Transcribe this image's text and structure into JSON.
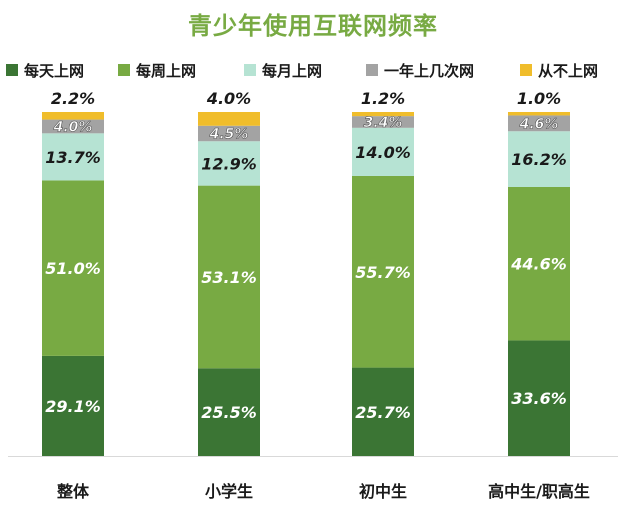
{
  "chart_data": {
    "type": "stacked-bar",
    "title": "青少年使用互联网频率",
    "categories": [
      "整体",
      "小学生",
      "初中生",
      "高中生/职高生"
    ],
    "series": [
      {
        "name": "每天上网",
        "color": "#3b7534",
        "values": [
          29.1,
          25.5,
          25.7,
          33.6
        ],
        "labels": [
          "29.1%",
          "25.5%",
          "25.7%",
          "33.6%"
        ]
      },
      {
        "name": "每周上网",
        "color": "#78aa43",
        "values": [
          51.0,
          53.1,
          55.7,
          44.6
        ],
        "labels": [
          "51.0%",
          "53.1%",
          "55.7%",
          "44.6%"
        ]
      },
      {
        "name": "每月上网",
        "color": "#b6e3d3",
        "values": [
          13.7,
          12.9,
          14.0,
          16.2
        ],
        "labels": [
          "13.7%",
          "12.9%",
          "14.0%",
          "16.2%"
        ]
      },
      {
        "name": "一年上几次网",
        "color": "#a3a3a3",
        "values": [
          4.0,
          4.5,
          3.4,
          4.6
        ],
        "labels": [
          "4.0%",
          "4.5%",
          "3.4%",
          "4.6%"
        ]
      },
      {
        "name": "从不上网",
        "color": "#f0bd2b",
        "values": [
          2.2,
          4.0,
          1.2,
          1.0
        ],
        "labels": [
          "2.2%",
          "4.0%",
          "1.2%",
          "1.0%"
        ]
      }
    ],
    "ylim": [
      0,
      100
    ],
    "stacked": true,
    "legend": "top",
    "grid": false,
    "title_color": "#78aa43"
  }
}
